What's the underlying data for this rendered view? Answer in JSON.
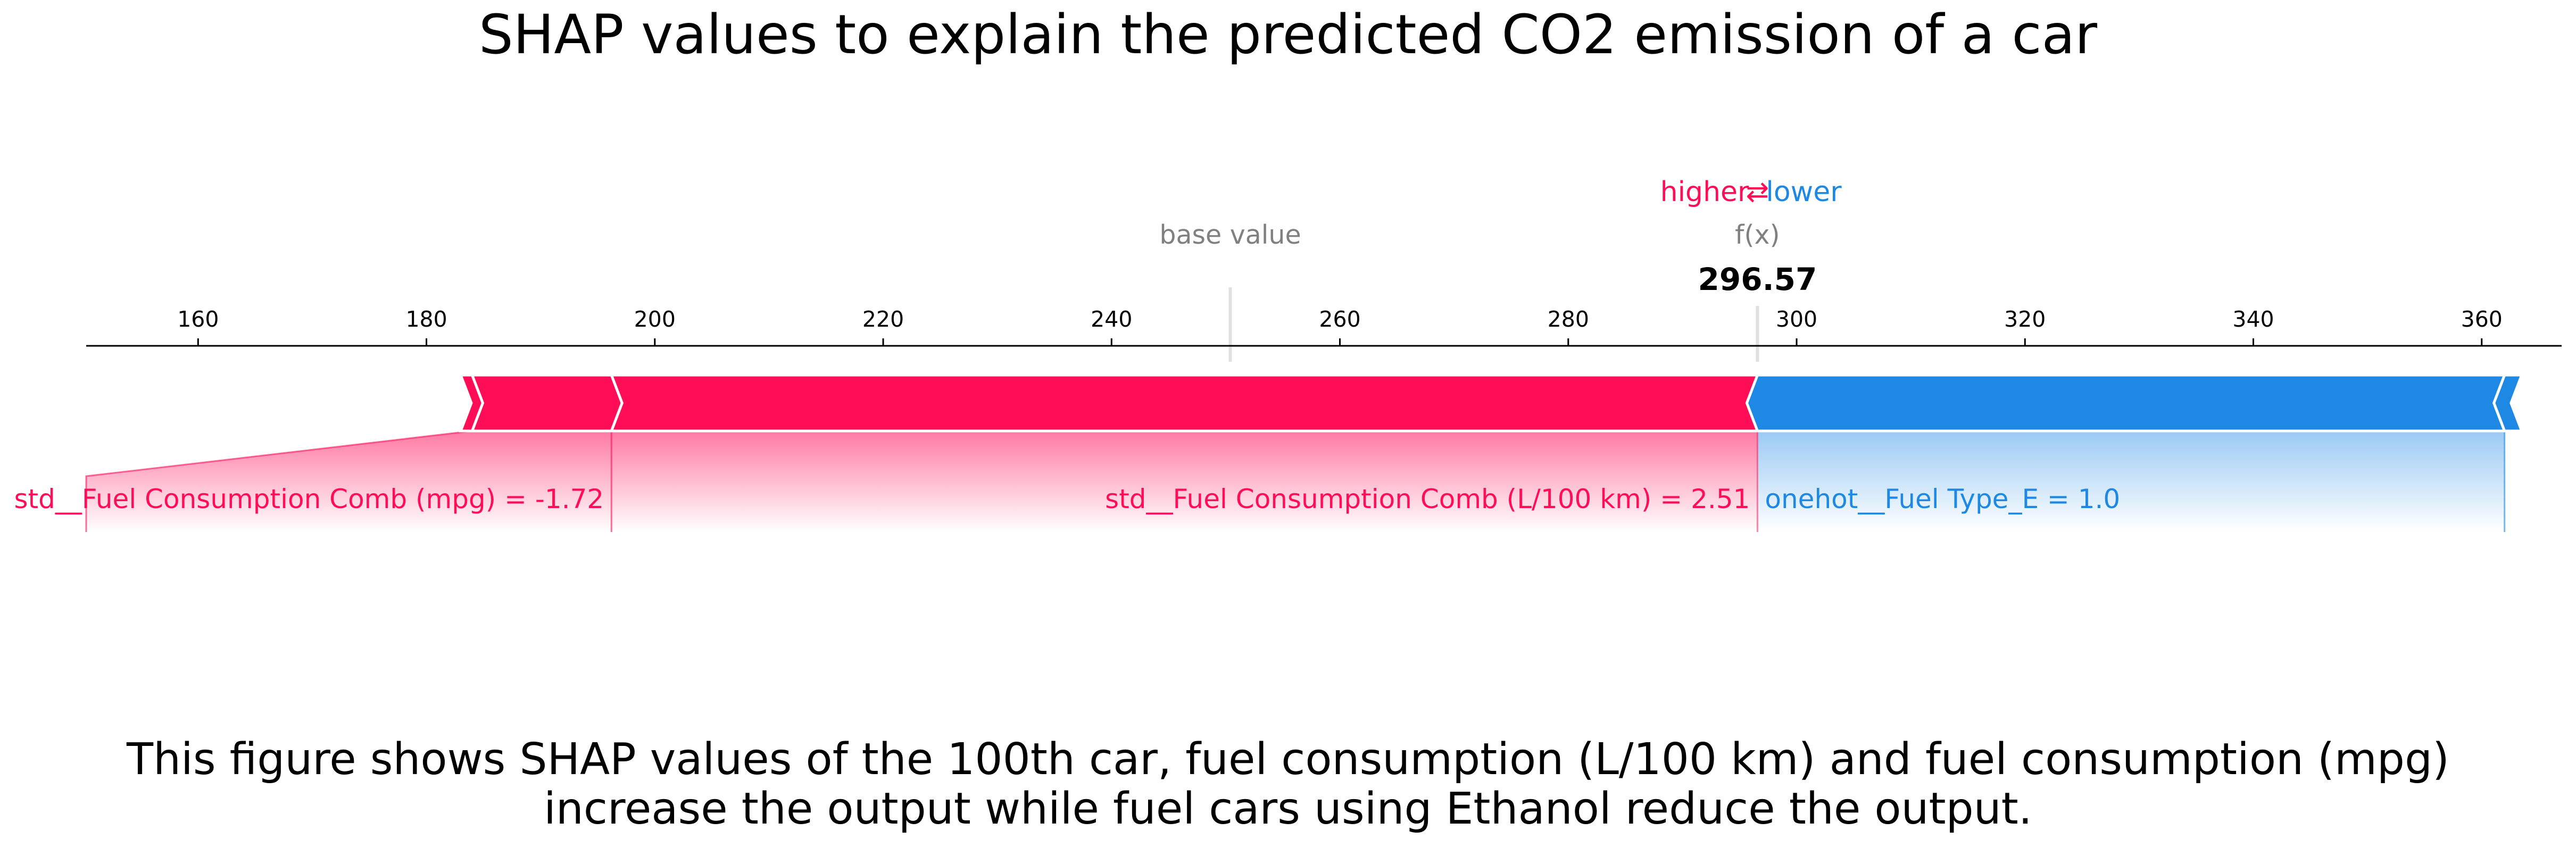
{
  "colors": {
    "positive": "#ff0d57",
    "negative": "#1e88e5",
    "axis": "#000000",
    "muted": "#808080"
  },
  "labels": {
    "base_value": "base value",
    "fx": "f(x)",
    "fx_value": "296.57",
    "higher": "higher",
    "lower": "lower",
    "arrows": "⇄"
  },
  "caption": {
    "line1": "This figure shows SHAP values of the 100th car, fuel consumption (L/100 km) and fuel consumption (mpg)",
    "line2": "increase the output while fuel cars using Ethanol reduce the output."
  },
  "chart_data": {
    "type": "force",
    "title": "SHAP values to explain the predicted CO2 emission of a car",
    "xlim": [
      150.2,
      367.0
    ],
    "ticks": [
      160,
      180,
      200,
      220,
      240,
      260,
      280,
      300,
      320,
      340,
      360
    ],
    "base_value": 250.4,
    "output_value": 296.57,
    "features": [
      {
        "label": "std__Fuel Consumption Comb (L/100 km) = 2.51",
        "effect": "positive",
        "start": 196.2,
        "end": 296.57
      },
      {
        "label": "std__Fuel Consumption Comb (mpg) = -1.72",
        "effect": "positive",
        "start": 184.0,
        "end": 196.2
      },
      {
        "label": "",
        "effect": "positive",
        "start": 183.0,
        "end": 184.0
      },
      {
        "label": "onehot__Fuel Type_E = 1.0",
        "effect": "negative",
        "start": 296.57,
        "end": 362.0
      },
      {
        "label": "",
        "effect": "negative",
        "start": 362.0,
        "end": 363.5
      }
    ],
    "grid": false
  }
}
